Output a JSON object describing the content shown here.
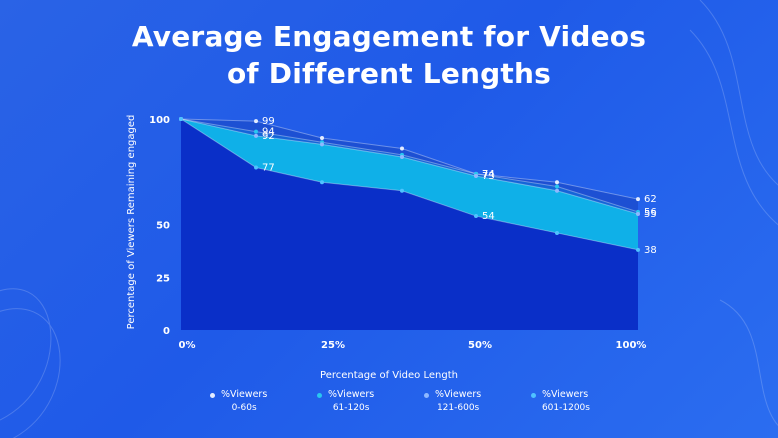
{
  "title_line1": "Average Engagement for Videos",
  "title_line2": "of Different Lengths",
  "chart_data": {
    "type": "area",
    "title": "Average Engagement for Videos of Different Lengths",
    "xlabel": "Percentage of Video Length",
    "ylabel": "Percentage of Viewers Remaining engaged",
    "x_ticks": [
      "0%",
      "25%",
      "50%",
      "100%"
    ],
    "y_ticks": [
      "0",
      "25",
      "50",
      "100"
    ],
    "ylim": [
      0,
      100
    ],
    "grid": false,
    "legend_position": "bottom",
    "series": [
      {
        "name": "%Viewers 0-60s",
        "name_line1": "%Viewers",
        "name_line2": "0-60s",
        "color": "#e3ecff",
        "fill": "#1d4fd0",
        "values": [
          100,
          99,
          91,
          86,
          74,
          70,
          62
        ],
        "labels": {
          "1": "99",
          "4": "74",
          "6": "62"
        }
      },
      {
        "name": "%Viewers 61-120s",
        "name_line1": "%Viewers",
        "name_line2": "61-120s",
        "color": "#29c7f0",
        "fill": "#1565d8",
        "values": [
          100,
          94,
          89,
          83,
          74,
          68,
          56
        ],
        "labels": {
          "1": "94",
          "4": "74",
          "6": "56"
        }
      },
      {
        "name": "%Viewers 121-600s",
        "name_line1": "%Viewers",
        "name_line2": "121-600s",
        "color": "#8fb8ff",
        "fill": "#0fb0e8",
        "values": [
          100,
          92,
          88,
          82,
          73,
          66,
          55
        ],
        "labels": {
          "1": "92",
          "4": "73",
          "6": "55"
        }
      },
      {
        "name": "%Viewers 601-1200s",
        "name_line1": "%Viewers",
        "name_line2": "601-1200s",
        "color": "#4fc3ff",
        "fill": "#0a2fc8",
        "values": [
          100,
          77,
          70,
          66,
          54,
          46,
          38
        ],
        "labels": {
          "1": "77",
          "4": "54",
          "6": "38"
        }
      }
    ]
  }
}
